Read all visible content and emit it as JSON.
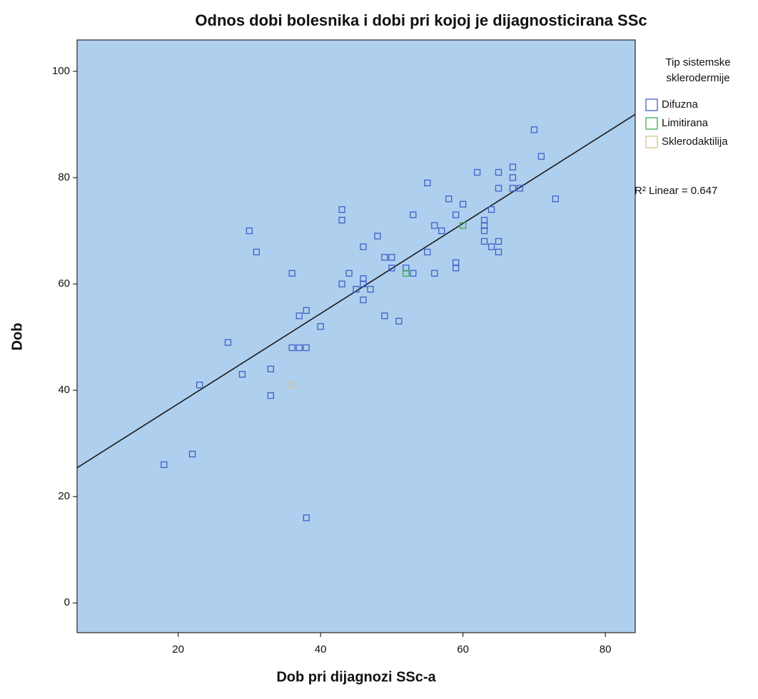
{
  "chart_data": {
    "type": "scatter",
    "title": "Odnos dobi bolesnika i dobi pri kojoj je dijagnosticirana SSc",
    "x_label": "Dob pri dijagnozi SSc-a",
    "y_label": "Dob",
    "xlim": [
      5.8,
      84.2
    ],
    "ylim": [
      -5.6,
      105.9
    ],
    "xticks": [
      20,
      40,
      60,
      80
    ],
    "yticks": [
      0,
      20,
      40,
      60,
      80,
      100
    ],
    "grid": false,
    "background": "#afcfee",
    "legend_title": [
      "Tip sistemske",
      "sklerodermije"
    ],
    "legend_position": "right",
    "series": [
      {
        "name": "Difuzna",
        "color": "#4060c8",
        "x": [
          18,
          22,
          23,
          27,
          29,
          30,
          31,
          33,
          33,
          36,
          36,
          37,
          38,
          37,
          38,
          38,
          40,
          43,
          43,
          43,
          44,
          45,
          46,
          46,
          46,
          46,
          47,
          48,
          49,
          50,
          50,
          49,
          51,
          52,
          53,
          53,
          55,
          55,
          56,
          56,
          57,
          58,
          59,
          59,
          59,
          60,
          62,
          63,
          63,
          63,
          63,
          64,
          64,
          65,
          65,
          65,
          65,
          67,
          67,
          67,
          68,
          70,
          71,
          73
        ],
        "values": [
          26,
          28,
          41,
          49,
          43,
          70,
          66,
          44,
          39,
          62,
          48,
          48,
          48,
          54,
          55,
          16,
          52,
          74,
          72,
          60,
          62,
          59,
          67,
          61,
          60,
          57,
          59,
          69,
          65,
          65,
          63,
          54,
          53,
          63,
          62,
          73,
          79,
          66,
          71,
          62,
          70,
          76,
          73,
          64,
          63,
          75,
          81,
          72,
          71,
          70,
          68,
          74,
          67,
          68,
          66,
          81,
          78,
          82,
          80,
          78,
          78,
          89,
          84,
          76
        ]
      },
      {
        "name": "Limitirana",
        "color": "#3fae49",
        "x": [
          52,
          60
        ],
        "values": [
          62,
          71
        ]
      },
      {
        "name": "Sklerodaktilija",
        "color": "#d4c38c",
        "x": [
          36
        ],
        "values": [
          41
        ]
      }
    ],
    "trendline": {
      "intercept": 20.5,
      "slope": 0.848,
      "color": "#1a1a1a",
      "label": "R² Linear = 0.647"
    }
  }
}
